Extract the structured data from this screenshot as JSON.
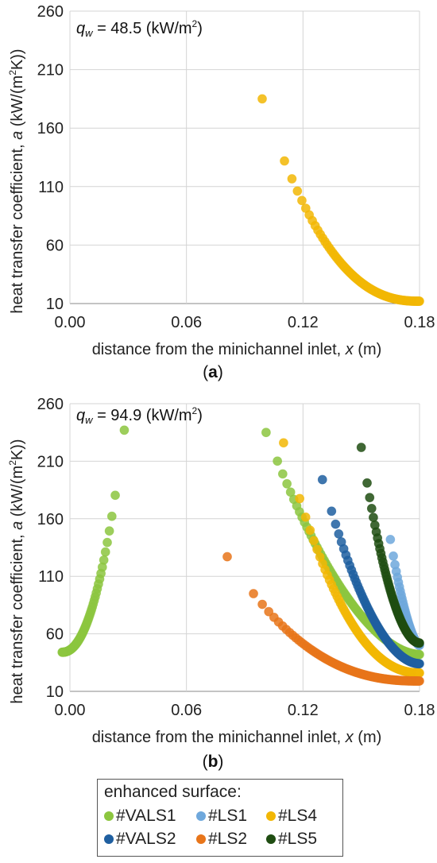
{
  "colors": {
    "VALS1": "#8cc63f",
    "LS1": "#6fa8dc",
    "LS4": "#f2b705",
    "VALS2": "#1f5fa0",
    "LS2": "#e8751a",
    "LS5": "#1f4d12",
    "grid": "#d4d4d4",
    "axis": "#888888"
  },
  "legend": {
    "title": "enhanced surface:",
    "items": [
      {
        "key": "VALS1",
        "label": "#VALS1"
      },
      {
        "key": "LS1",
        "label": "#LS1"
      },
      {
        "key": "LS4",
        "label": "#LS4"
      },
      {
        "key": "VALS2",
        "label": "#VALS2"
      },
      {
        "key": "LS2",
        "label": "#LS2"
      },
      {
        "key": "LS5",
        "label": "#LS5"
      }
    ]
  },
  "chart_data": [
    {
      "type": "scatter",
      "panel_label_open": "(",
      "panel_label_letter": "a",
      "panel_label_close": ")",
      "annotation_symbol": "q",
      "annotation_sub": "w",
      "annotation_value": " = 48.5 (kW/m",
      "annotation_sup": "2",
      "annotation_close": ")",
      "xlabel_main": "distance from the minichannel inlet, ",
      "xlabel_var": "x",
      "xlabel_unit": " (m)",
      "ylabel_main": "heat transfer coefficient, ",
      "ylabel_var": "a",
      "ylabel_unit_open": " (kW/(m",
      "ylabel_unit_sup": "2",
      "ylabel_unit_close": "K))",
      "xlim": [
        0,
        0.18
      ],
      "ylim": [
        10,
        260
      ],
      "xticks": [
        "0.00",
        "0.06",
        "0.12",
        "0.18"
      ],
      "xtick_values": [
        0,
        0.06,
        0.12,
        0.18
      ],
      "yticks": [
        "10",
        "60",
        "110",
        "160",
        "210",
        "260"
      ],
      "ytick_values": [
        10,
        60,
        110,
        160,
        210,
        260
      ],
      "grid": true,
      "series": [
        {
          "key": "LS4",
          "x_start": 0.099,
          "x_end": 0.18,
          "y_start": 185,
          "y_end": 12,
          "n": 110,
          "pow": 2.4
        }
      ]
    },
    {
      "type": "scatter",
      "panel_label_open": "(",
      "panel_label_letter": "b",
      "panel_label_close": ")",
      "annotation_symbol": "q",
      "annotation_sub": "w",
      "annotation_value": " = 94.9 (kW/m",
      "annotation_sup": "2",
      "annotation_close": ")",
      "xlabel_main": "distance from the minichannel inlet, ",
      "xlabel_var": "x",
      "xlabel_unit": " (m)",
      "ylabel_main": "heat transfer coefficient, ",
      "ylabel_var": "a",
      "ylabel_unit_open": " (kW/(m",
      "ylabel_unit_sup": "2",
      "ylabel_unit_close": "K))",
      "xlim": [
        0,
        0.18
      ],
      "ylim": [
        10,
        260
      ],
      "xticks": [
        "0.00",
        "0.06",
        "0.12",
        "0.18"
      ],
      "xtick_values": [
        0,
        0.06,
        0.12,
        0.18
      ],
      "yticks": [
        "10",
        "60",
        "110",
        "160",
        "210",
        "260"
      ],
      "ytick_values": [
        10,
        60,
        110,
        160,
        210,
        260
      ],
      "grid": true,
      "series": [
        {
          "key": "VALS1",
          "x_start": 0.028,
          "x_end": -0.004,
          "y_start": 237,
          "y_end": 44,
          "n": 70,
          "pow": 2.2
        },
        {
          "key": "VALS1",
          "x_start": 0.101,
          "x_end": 0.18,
          "y_start": 235,
          "y_end": 42,
          "n": 110,
          "pow": 1.8
        },
        {
          "key": "LS4",
          "x_start": 0.11,
          "x_end": 0.18,
          "y_start": 226,
          "y_end": 26,
          "n": 110,
          "pow": 2.2
        },
        {
          "key": "LS1",
          "x_start": 0.165,
          "x_end": 0.18,
          "y_start": 142,
          "y_end": 50,
          "n": 40,
          "pow": 1.6
        },
        {
          "key": "LS2",
          "x_start": 0.081,
          "x_end": 0.18,
          "y_start": 127,
          "y_end": 19,
          "n": 120,
          "pow": 2.4
        },
        {
          "key": "VALS2",
          "x_start": 0.13,
          "x_end": 0.18,
          "y_start": 194,
          "y_end": 34,
          "n": 90,
          "pow": 1.9
        },
        {
          "key": "LS5",
          "x_start": 0.15,
          "x_end": 0.18,
          "y_start": 222,
          "y_end": 52,
          "n": 80,
          "pow": 1.9
        }
      ]
    }
  ]
}
